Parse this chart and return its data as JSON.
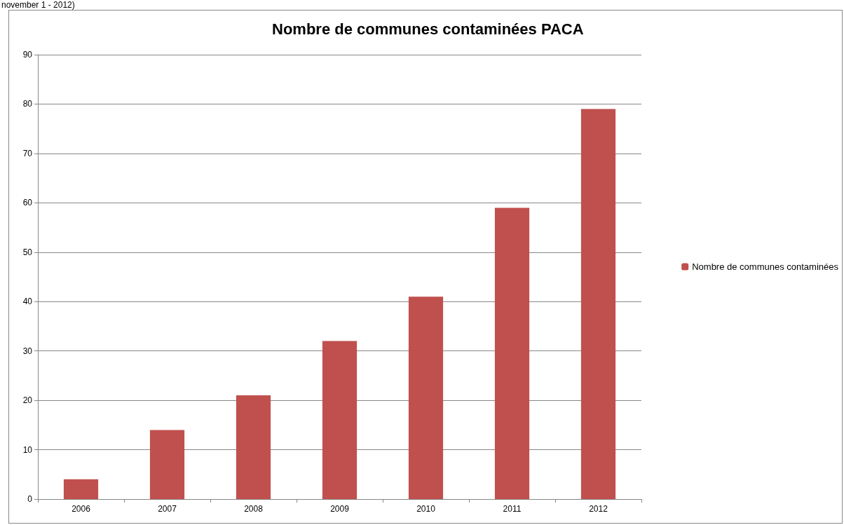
{
  "chart_data": {
    "type": "bar",
    "title": "Nombre de communes contaminées PACA",
    "annotations": [
      "november 1 - 2012)"
    ],
    "categories": [
      "2006",
      "2007",
      "2008",
      "2009",
      "2010",
      "2011",
      "2012"
    ],
    "series": [
      {
        "name": "Nombre de communes contaminées",
        "color": "#c0504d",
        "values": [
          4,
          14,
          21,
          32,
          41,
          59,
          79
        ]
      }
    ],
    "ylim": [
      0,
      90
    ],
    "yticks": [
      0,
      10,
      20,
      30,
      40,
      50,
      60,
      70,
      80,
      90
    ],
    "grid": "y",
    "legend": "right"
  }
}
